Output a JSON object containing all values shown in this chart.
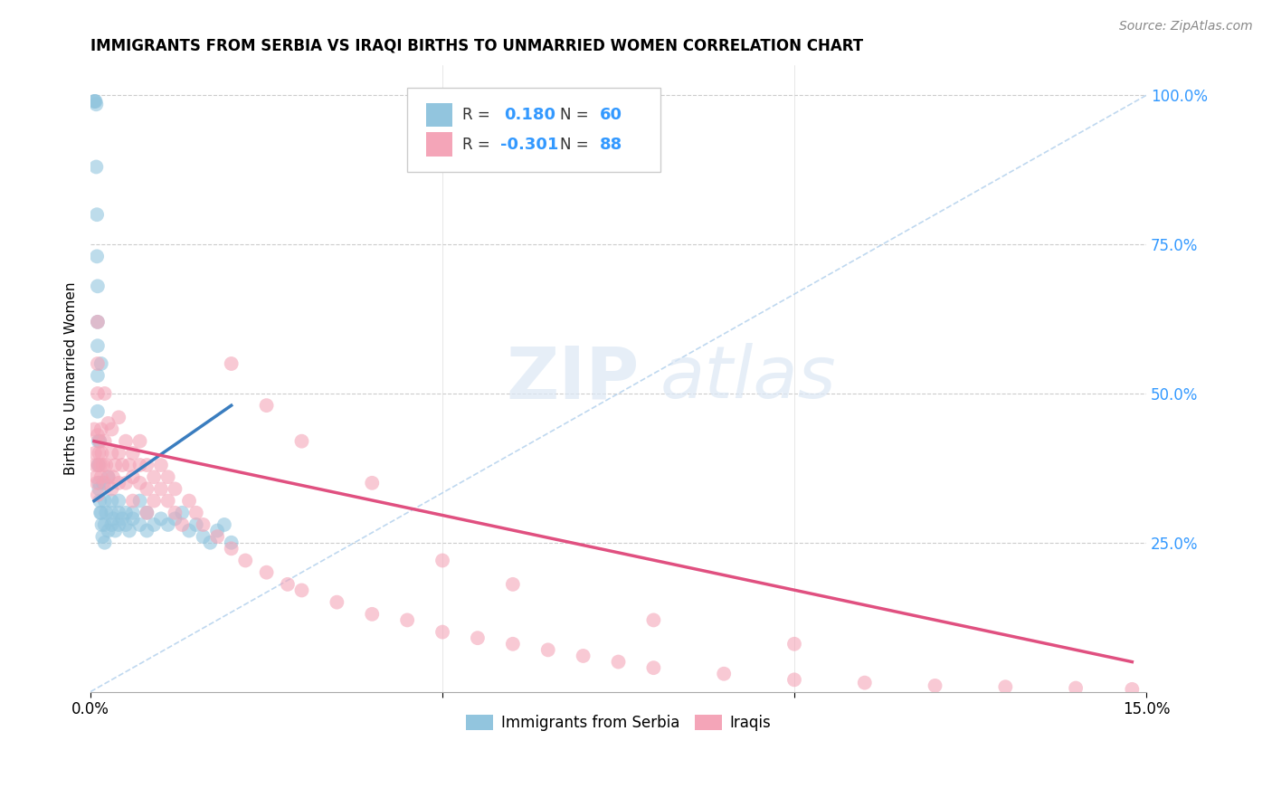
{
  "title": "IMMIGRANTS FROM SERBIA VS IRAQI BIRTHS TO UNMARRIED WOMEN CORRELATION CHART",
  "source": "Source: ZipAtlas.com",
  "ylabel": "Births to Unmarried Women",
  "right_yticks": [
    "100.0%",
    "75.0%",
    "50.0%",
    "25.0%"
  ],
  "right_ytick_vals": [
    1.0,
    0.75,
    0.5,
    0.25
  ],
  "legend_label1": "Immigrants from Serbia",
  "legend_label2": "Iraqis",
  "R1": 0.18,
  "N1": 60,
  "R2": -0.301,
  "N2": 88,
  "color_blue": "#92c5de",
  "color_pink": "#f4a5b8",
  "color_blue_line": "#3a7dbf",
  "color_pink_line": "#e05080",
  "color_diag": "#b8d4ee",
  "xmin": 0.0,
  "xmax": 0.15,
  "ymin": 0.0,
  "ymax": 1.05,
  "serbia_x": [
    0.0005,
    0.0006,
    0.0007,
    0.0008,
    0.0008,
    0.0009,
    0.0009,
    0.001,
    0.001,
    0.001,
    0.001,
    0.001,
    0.0011,
    0.0011,
    0.0012,
    0.0012,
    0.0013,
    0.0013,
    0.0014,
    0.0015,
    0.0015,
    0.0016,
    0.0017,
    0.0018,
    0.002,
    0.002,
    0.002,
    0.0022,
    0.0025,
    0.0025,
    0.003,
    0.003,
    0.003,
    0.0032,
    0.0035,
    0.004,
    0.004,
    0.004,
    0.0045,
    0.005,
    0.005,
    0.0055,
    0.006,
    0.006,
    0.007,
    0.007,
    0.008,
    0.008,
    0.009,
    0.01,
    0.011,
    0.012,
    0.013,
    0.014,
    0.015,
    0.016,
    0.017,
    0.018,
    0.019,
    0.02
  ],
  "serbia_y": [
    0.99,
    0.99,
    0.99,
    0.985,
    0.88,
    0.8,
    0.73,
    0.68,
    0.62,
    0.58,
    0.53,
    0.47,
    0.42,
    0.38,
    0.35,
    0.34,
    0.42,
    0.32,
    0.3,
    0.55,
    0.3,
    0.28,
    0.26,
    0.35,
    0.32,
    0.28,
    0.25,
    0.3,
    0.27,
    0.36,
    0.28,
    0.32,
    0.3,
    0.29,
    0.27,
    0.28,
    0.32,
    0.3,
    0.29,
    0.28,
    0.3,
    0.27,
    0.29,
    0.3,
    0.28,
    0.32,
    0.27,
    0.3,
    0.28,
    0.29,
    0.28,
    0.29,
    0.3,
    0.27,
    0.28,
    0.26,
    0.25,
    0.27,
    0.28,
    0.25
  ],
  "iraqi_x": [
    0.0005,
    0.0006,
    0.0007,
    0.0008,
    0.0009,
    0.001,
    0.001,
    0.001,
    0.001,
    0.001,
    0.0011,
    0.0012,
    0.0013,
    0.0014,
    0.0015,
    0.0015,
    0.0016,
    0.0018,
    0.002,
    0.002,
    0.002,
    0.0022,
    0.0025,
    0.0025,
    0.003,
    0.003,
    0.003,
    0.0032,
    0.0035,
    0.004,
    0.004,
    0.004,
    0.0045,
    0.005,
    0.005,
    0.0055,
    0.006,
    0.006,
    0.006,
    0.007,
    0.007,
    0.007,
    0.008,
    0.008,
    0.008,
    0.009,
    0.009,
    0.01,
    0.01,
    0.011,
    0.011,
    0.012,
    0.012,
    0.013,
    0.014,
    0.015,
    0.016,
    0.018,
    0.02,
    0.022,
    0.025,
    0.028,
    0.03,
    0.035,
    0.04,
    0.045,
    0.05,
    0.055,
    0.06,
    0.065,
    0.07,
    0.075,
    0.08,
    0.09,
    0.1,
    0.11,
    0.12,
    0.13,
    0.14,
    0.148,
    0.02,
    0.025,
    0.03,
    0.04,
    0.05,
    0.06,
    0.08,
    0.1
  ],
  "iraqi_y": [
    0.44,
    0.4,
    0.38,
    0.36,
    0.35,
    0.33,
    0.43,
    0.5,
    0.55,
    0.62,
    0.38,
    0.4,
    0.42,
    0.38,
    0.36,
    0.44,
    0.4,
    0.38,
    0.35,
    0.42,
    0.5,
    0.38,
    0.36,
    0.45,
    0.34,
    0.4,
    0.44,
    0.36,
    0.38,
    0.35,
    0.4,
    0.46,
    0.38,
    0.35,
    0.42,
    0.38,
    0.36,
    0.4,
    0.32,
    0.35,
    0.38,
    0.42,
    0.34,
    0.38,
    0.3,
    0.36,
    0.32,
    0.34,
    0.38,
    0.32,
    0.36,
    0.3,
    0.34,
    0.28,
    0.32,
    0.3,
    0.28,
    0.26,
    0.24,
    0.22,
    0.2,
    0.18,
    0.17,
    0.15,
    0.13,
    0.12,
    0.1,
    0.09,
    0.08,
    0.07,
    0.06,
    0.05,
    0.04,
    0.03,
    0.02,
    0.015,
    0.01,
    0.008,
    0.006,
    0.004,
    0.55,
    0.48,
    0.42,
    0.35,
    0.22,
    0.18,
    0.12,
    0.08
  ],
  "serbia_line_x": [
    0.0005,
    0.02
  ],
  "serbia_line_y": [
    0.32,
    0.48
  ],
  "iraqi_line_x": [
    0.0005,
    0.148
  ],
  "iraqi_line_y": [
    0.42,
    0.05
  ]
}
